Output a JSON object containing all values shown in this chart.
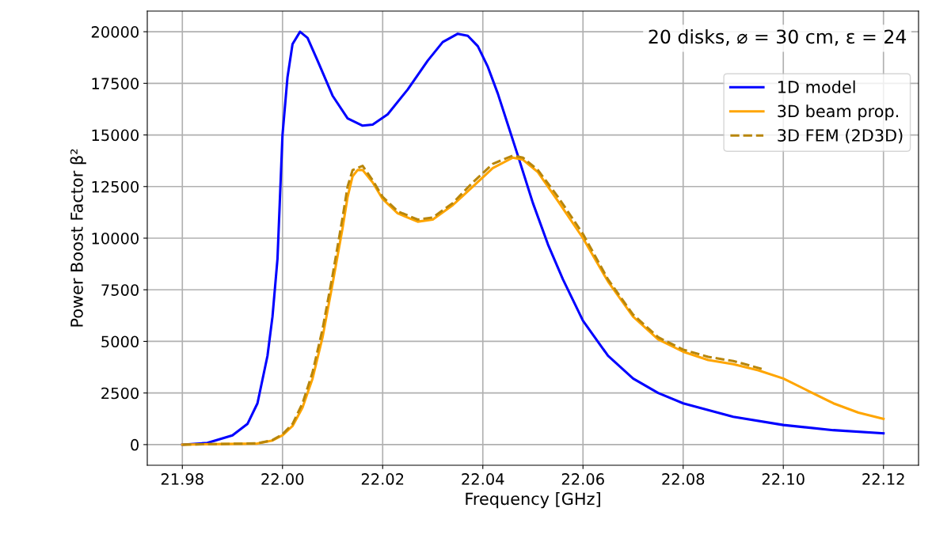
{
  "chart_data": {
    "type": "line",
    "xlabel": "Frequency [GHz]",
    "ylabel": "Power Boost Factor β²",
    "annotations": [
      "20 disks, ⌀ = 30 cm, ε = 24"
    ],
    "xlim": [
      21.973,
      22.127
    ],
    "xticks": [
      {
        "value": 21.98,
        "label": "21.98"
      },
      {
        "value": 22.0,
        "label": "22.00"
      },
      {
        "value": 22.02,
        "label": "22.02"
      },
      {
        "value": 22.04,
        "label": "22.04"
      },
      {
        "value": 22.06,
        "label": "22.06"
      },
      {
        "value": 22.08,
        "label": "22.08"
      },
      {
        "value": 22.1,
        "label": "22.10"
      },
      {
        "value": 22.12,
        "label": "22.12"
      }
    ],
    "ylim": [
      -1000,
      21000
    ],
    "yticks": [
      0,
      2500,
      5000,
      7500,
      10000,
      12500,
      15000,
      17500,
      20000
    ],
    "grid": true,
    "legend": "top right",
    "series": [
      {
        "name": "1D model",
        "color": "#0000ff",
        "line_style": "solid",
        "x": [
          21.98,
          21.985,
          21.99,
          21.993,
          21.995,
          21.997,
          21.998,
          21.999,
          22.0,
          22.001,
          22.002,
          22.0035,
          22.005,
          22.007,
          22.01,
          22.013,
          22.016,
          22.018,
          22.021,
          22.025,
          22.029,
          22.032,
          22.035,
          22.037,
          22.039,
          22.041,
          22.043,
          22.045,
          22.047,
          22.05,
          22.053,
          22.056,
          22.06,
          22.065,
          22.07,
          22.075,
          22.08,
          22.09,
          22.1,
          22.11,
          22.12
        ],
        "values": [
          0,
          80,
          450,
          1000,
          2000,
          4300,
          6200,
          9000,
          15000,
          17800,
          19400,
          20000,
          19700,
          18600,
          16900,
          15800,
          15450,
          15500,
          16000,
          17200,
          18600,
          19500,
          19900,
          19800,
          19300,
          18300,
          17000,
          15500,
          14000,
          11700,
          9700,
          8000,
          6000,
          4300,
          3200,
          2500,
          2000,
          1350,
          950,
          700,
          550
        ]
      },
      {
        "name": "3D beam prop.",
        "color": "#ffa500",
        "line_style": "solid",
        "x": [
          21.98,
          21.995,
          21.998,
          22.0,
          22.002,
          22.004,
          22.006,
          22.008,
          22.01,
          22.012,
          22.013,
          22.014,
          22.015,
          22.016,
          22.018,
          22.02,
          22.023,
          22.027,
          22.03,
          22.034,
          22.038,
          22.042,
          22.046,
          22.048,
          22.051,
          22.055,
          22.06,
          22.065,
          22.07,
          22.075,
          22.08,
          22.085,
          22.09,
          22.095,
          22.1,
          22.105,
          22.11,
          22.115,
          22.12
        ],
        "values": [
          0,
          50,
          200,
          450,
          900,
          1800,
          3200,
          5200,
          7800,
          10500,
          12000,
          13000,
          13300,
          13300,
          12700,
          11900,
          11200,
          10800,
          10900,
          11600,
          12500,
          13400,
          13900,
          13800,
          13200,
          11800,
          10000,
          7900,
          6200,
          5100,
          4500,
          4100,
          3900,
          3600,
          3200,
          2600,
          2000,
          1550,
          1250
        ]
      },
      {
        "name": "3D FEM (2D3D)",
        "color": "#b8860b",
        "line_style": "dashed",
        "x": [
          21.98,
          21.995,
          21.998,
          22.0,
          22.002,
          22.004,
          22.006,
          22.008,
          22.01,
          22.012,
          22.013,
          22.014,
          22.015,
          22.016,
          22.018,
          22.02,
          22.023,
          22.027,
          22.03,
          22.034,
          22.038,
          22.042,
          22.046,
          22.048,
          22.051,
          22.055,
          22.06,
          22.065,
          22.07,
          22.075,
          22.08,
          22.085,
          22.09,
          22.096
        ],
        "values": [
          0,
          60,
          220,
          500,
          1000,
          2000,
          3500,
          5600,
          8200,
          11000,
          12500,
          13300,
          13400,
          13500,
          12800,
          12000,
          11300,
          10900,
          11000,
          11700,
          12700,
          13600,
          14000,
          13900,
          13300,
          12000,
          10200,
          8000,
          6300,
          5200,
          4600,
          4250,
          4050,
          3650
        ]
      }
    ]
  }
}
